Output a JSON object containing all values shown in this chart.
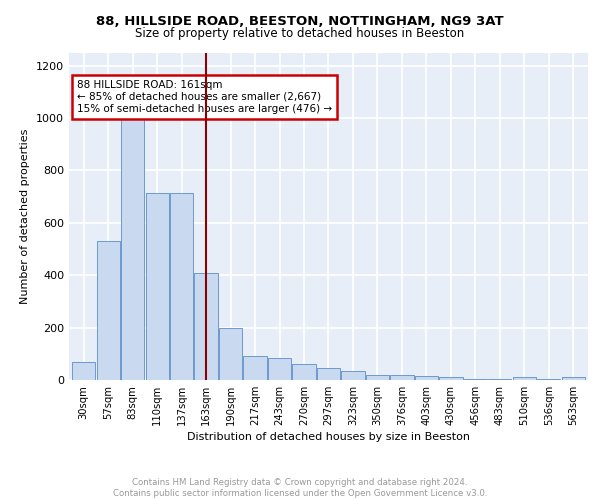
{
  "title1": "88, HILLSIDE ROAD, BEESTON, NOTTINGHAM, NG9 3AT",
  "title2": "Size of property relative to detached houses in Beeston",
  "xlabel": "Distribution of detached houses by size in Beeston",
  "ylabel": "Number of detached properties",
  "categories": [
    "30sqm",
    "57sqm",
    "83sqm",
    "110sqm",
    "137sqm",
    "163sqm",
    "190sqm",
    "217sqm",
    "243sqm",
    "270sqm",
    "297sqm",
    "323sqm",
    "350sqm",
    "376sqm",
    "403sqm",
    "430sqm",
    "456sqm",
    "483sqm",
    "510sqm",
    "536sqm",
    "563sqm"
  ],
  "values": [
    70,
    530,
    1005,
    715,
    715,
    410,
    200,
    90,
    85,
    60,
    45,
    35,
    18,
    18,
    15,
    12,
    5,
    5,
    12,
    5,
    12
  ],
  "bar_color": "#c9d9ef",
  "bar_edge_color": "#5b8dc8",
  "vline_index": 5,
  "vline_color": "#8b0000",
  "annotation_text": "88 HILLSIDE ROAD: 161sqm\n← 85% of detached houses are smaller (2,667)\n15% of semi-detached houses are larger (476) →",
  "annotation_box_color": "white",
  "annotation_box_edge_color": "#cc0000",
  "ylim": [
    0,
    1250
  ],
  "yticks": [
    0,
    200,
    400,
    600,
    800,
    1000,
    1200
  ],
  "footer_text": "Contains HM Land Registry data © Crown copyright and database right 2024.\nContains public sector information licensed under the Open Government Licence v3.0.",
  "bg_color": "#e8eef8",
  "grid_color": "white"
}
